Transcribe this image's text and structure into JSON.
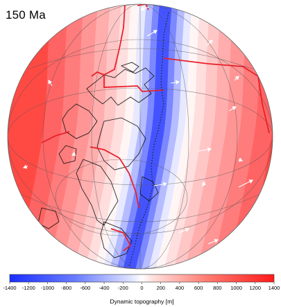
{
  "map": {
    "age_label": "150 Ma",
    "projection": "orthographic globe",
    "colors": {
      "negative": "#1f3dff",
      "zero": "#ffffff",
      "positive": "#ff1f1f",
      "plate_boundary": "#e8202a",
      "velocity_arrow": "#ffffff"
    }
  },
  "colorbar": {
    "title": "Dynamic topography [m]",
    "min": -1400,
    "max": 1400,
    "tick_values": [
      -1400,
      -1200,
      -1000,
      -800,
      -600,
      -400,
      -200,
      0,
      200,
      400,
      600,
      800,
      1000,
      1200,
      1400
    ],
    "tick_labels": [
      "-1400",
      "-1200",
      "-1000",
      "-800",
      "-600",
      "-400",
      "-200",
      "0",
      "200",
      "400",
      "600",
      "800",
      "1000",
      "1200",
      "1400"
    ]
  }
}
